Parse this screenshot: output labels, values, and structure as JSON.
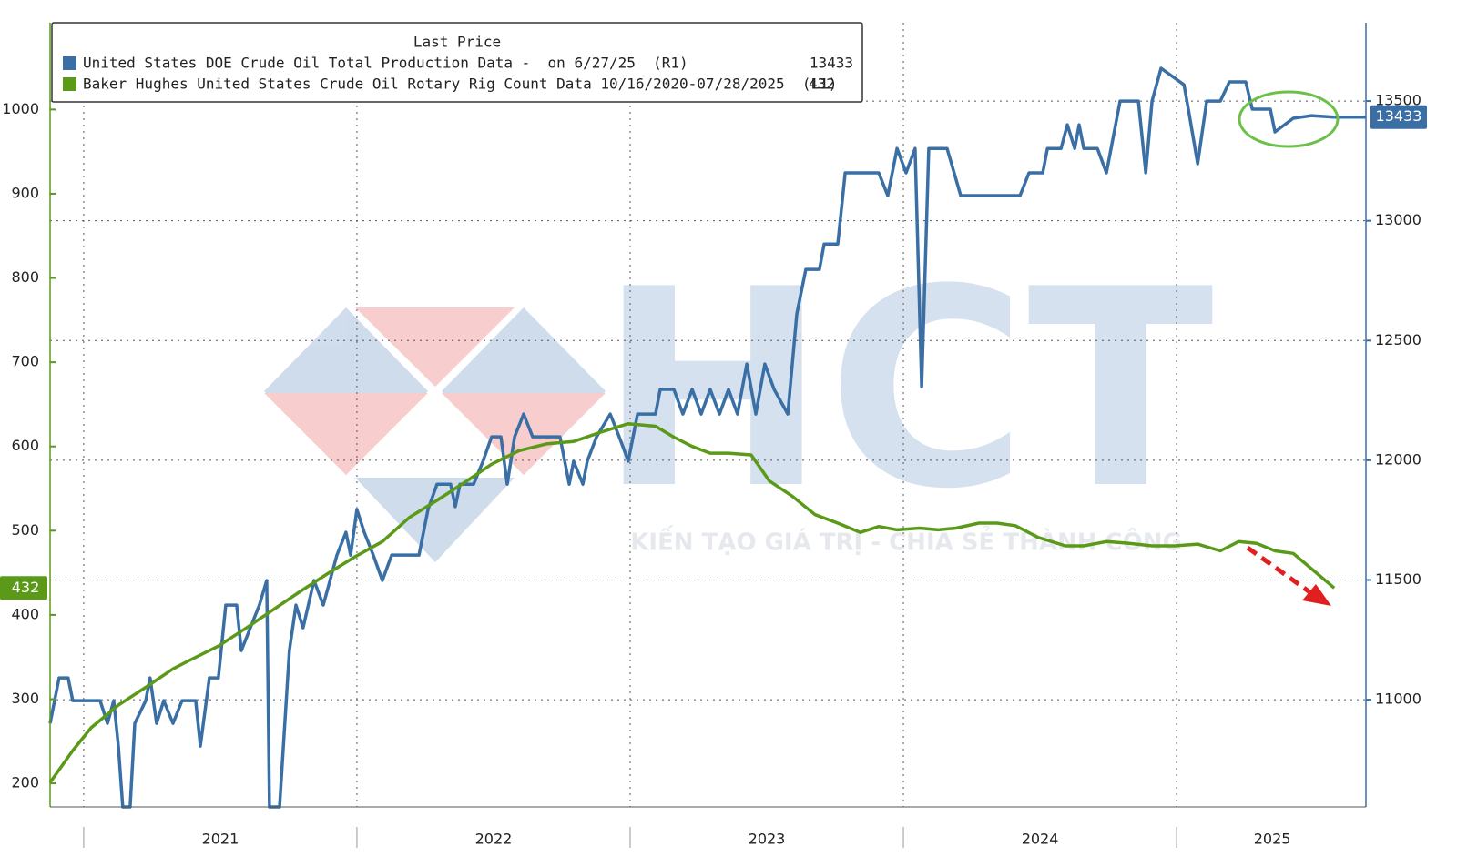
{
  "chart_data": {
    "type": "line",
    "legend_title": "Last Price",
    "watermark": "HCT",
    "watermark_tagline": "KIẾN TẠO GIÁ TRỊ - CHIA SẺ THÀNH CÔNG",
    "xlim": [
      2020.877,
      2025.693
    ],
    "xticks": [
      {
        "value": 2021.5,
        "label": "2021"
      },
      {
        "value": 2022.5,
        "label": "2022"
      },
      {
        "value": 2023.5,
        "label": "2023"
      },
      {
        "value": 2024.5,
        "label": "2024"
      },
      {
        "value": 2025.35,
        "label": "2025"
      }
    ],
    "ylim": [
      172,
      1103
    ],
    "yticks": [
      200,
      300,
      400,
      500,
      600,
      700,
      800,
      900,
      1000
    ],
    "y2lim": [
      10552,
      13827
    ],
    "y2ticks": [
      11000,
      11500,
      12000,
      12500,
      13000,
      13500
    ],
    "grid": true,
    "legend": "top-left",
    "series": [
      {
        "name": "United States DOE Crude Oil Total Production Data -  on 6/27/25  (R1)",
        "color": "#3a6fa5",
        "axis": "y2",
        "x": [
          2020.877,
          2020.91,
          2020.943,
          2020.96,
          2021.06,
          2021.087,
          2021.11,
          2021.127,
          2021.143,
          2021.17,
          2021.187,
          2021.227,
          2021.243,
          2021.267,
          2021.293,
          2021.327,
          2021.36,
          2021.41,
          2021.427,
          2021.46,
          2021.493,
          2021.52,
          2021.56,
          2021.577,
          2021.61,
          2021.643,
          2021.67,
          2021.68,
          2021.717,
          2021.753,
          2021.777,
          2021.803,
          2021.843,
          2021.877,
          2021.927,
          2021.96,
          2021.977,
          2022.0,
          2022.027,
          2022.06,
          2022.093,
          2022.127,
          2022.227,
          2022.26,
          2022.293,
          2022.343,
          2022.36,
          2022.377,
          2022.427,
          2022.46,
          2022.493,
          2022.527,
          2022.55,
          2022.577,
          2022.61,
          2022.643,
          2022.677,
          2022.743,
          2022.777,
          2022.793,
          2022.827,
          2022.843,
          2022.877,
          2022.927,
          2022.96,
          2022.993,
          2023.027,
          2023.093,
          2023.11,
          2023.16,
          2023.193,
          2023.227,
          2023.26,
          2023.293,
          2023.327,
          2023.36,
          2023.393,
          2023.427,
          2023.46,
          2023.493,
          2023.527,
          2023.577,
          2023.61,
          2023.643,
          2023.693,
          2023.71,
          2023.76,
          2023.787,
          2023.91,
          2023.943,
          2023.977,
          2024.01,
          2024.043,
          2024.067,
          2024.093,
          2024.16,
          2024.21,
          2024.427,
          2024.46,
          2024.51,
          2024.527,
          2024.577,
          2024.6,
          2024.627,
          2024.643,
          2024.66,
          2024.71,
          2024.743,
          2024.793,
          2024.86,
          2024.887,
          2024.91,
          2024.943,
          2025.027,
          2025.043,
          2025.077,
          2025.11,
          2025.16,
          2025.193,
          2025.253,
          2025.277,
          2025.343,
          2025.36,
          2025.427,
          2025.493,
          2025.577
        ],
        "values": [
          10901,
          11091,
          11091,
          10996,
          10996,
          10901,
          10996,
          10806,
          10552,
          10552,
          10901,
          10996,
          11091,
          10901,
          10996,
          10901,
          10996,
          10996,
          10806,
          11091,
          11091,
          11395,
          11395,
          11205,
          11300,
          11395,
          11498,
          10552,
          10552,
          11205,
          11395,
          11300,
          11498,
          11395,
          11604,
          11699,
          11604,
          11794,
          11699,
          11604,
          11498,
          11604,
          11604,
          11794,
          11900,
          11900,
          11806,
          11900,
          11900,
          11992,
          12098,
          12098,
          11900,
          12098,
          12193,
          12098,
          12098,
          12098,
          11900,
          11996,
          11900,
          11996,
          12098,
          12193,
          12098,
          11996,
          12193,
          12193,
          12296,
          12296,
          12193,
          12296,
          12193,
          12296,
          12193,
          12296,
          12193,
          12402,
          12193,
          12402,
          12296,
          12193,
          12611,
          12797,
          12797,
          12903,
          12903,
          13200,
          13200,
          13105,
          13302,
          13200,
          13302,
          12307,
          13302,
          13302,
          13105,
          13105,
          13200,
          13200,
          13302,
          13302,
          13401,
          13302,
          13401,
          13302,
          13302,
          13200,
          13500,
          13500,
          13200,
          13500,
          13637,
          13568,
          13466,
          13238,
          13500,
          13500,
          13580,
          13580,
          13466,
          13466,
          13371,
          13428,
          13439,
          13433
        ]
      },
      {
        "name": "Baker Hughes United States Crude Oil Rotary Rig Count Data 10/16/2020-07/28/2025  (L1)",
        "color": "#5a9a18",
        "axis": "y",
        "x": [
          2020.877,
          2020.96,
          2021.027,
          2021.127,
          2021.227,
          2021.327,
          2021.393,
          2021.493,
          2021.593,
          2021.693,
          2021.793,
          2021.893,
          2021.993,
          2022.093,
          2022.193,
          2022.293,
          2022.393,
          2022.493,
          2022.593,
          2022.693,
          2022.793,
          2022.893,
          2022.993,
          2023.093,
          2023.16,
          2023.227,
          2023.293,
          2023.36,
          2023.443,
          2023.51,
          2023.593,
          2023.677,
          2023.76,
          2023.843,
          2023.91,
          2023.977,
          2024.06,
          2024.127,
          2024.193,
          2024.277,
          2024.343,
          2024.41,
          2024.493,
          2024.593,
          2024.66,
          2024.743,
          2024.827,
          2024.91,
          2024.993,
          2025.077,
          2025.16,
          2025.227,
          2025.293,
          2025.36,
          2025.427,
          2025.493,
          2025.577
        ],
        "values": [
          201,
          239,
          266,
          293,
          314,
          336,
          347,
          363,
          384,
          406,
          428,
          449,
          469,
          487,
          516,
          536,
          557,
          579,
          595,
          603,
          606,
          617,
          627,
          624,
          611,
          600,
          592,
          592,
          590,
          559,
          541,
          519,
          509,
          498,
          505,
          501,
          503,
          501,
          503,
          509,
          509,
          506,
          492,
          482,
          482,
          487,
          485,
          482,
          482,
          484,
          476,
          487,
          485,
          476,
          473,
          455,
          432
        ]
      }
    ]
  }
}
